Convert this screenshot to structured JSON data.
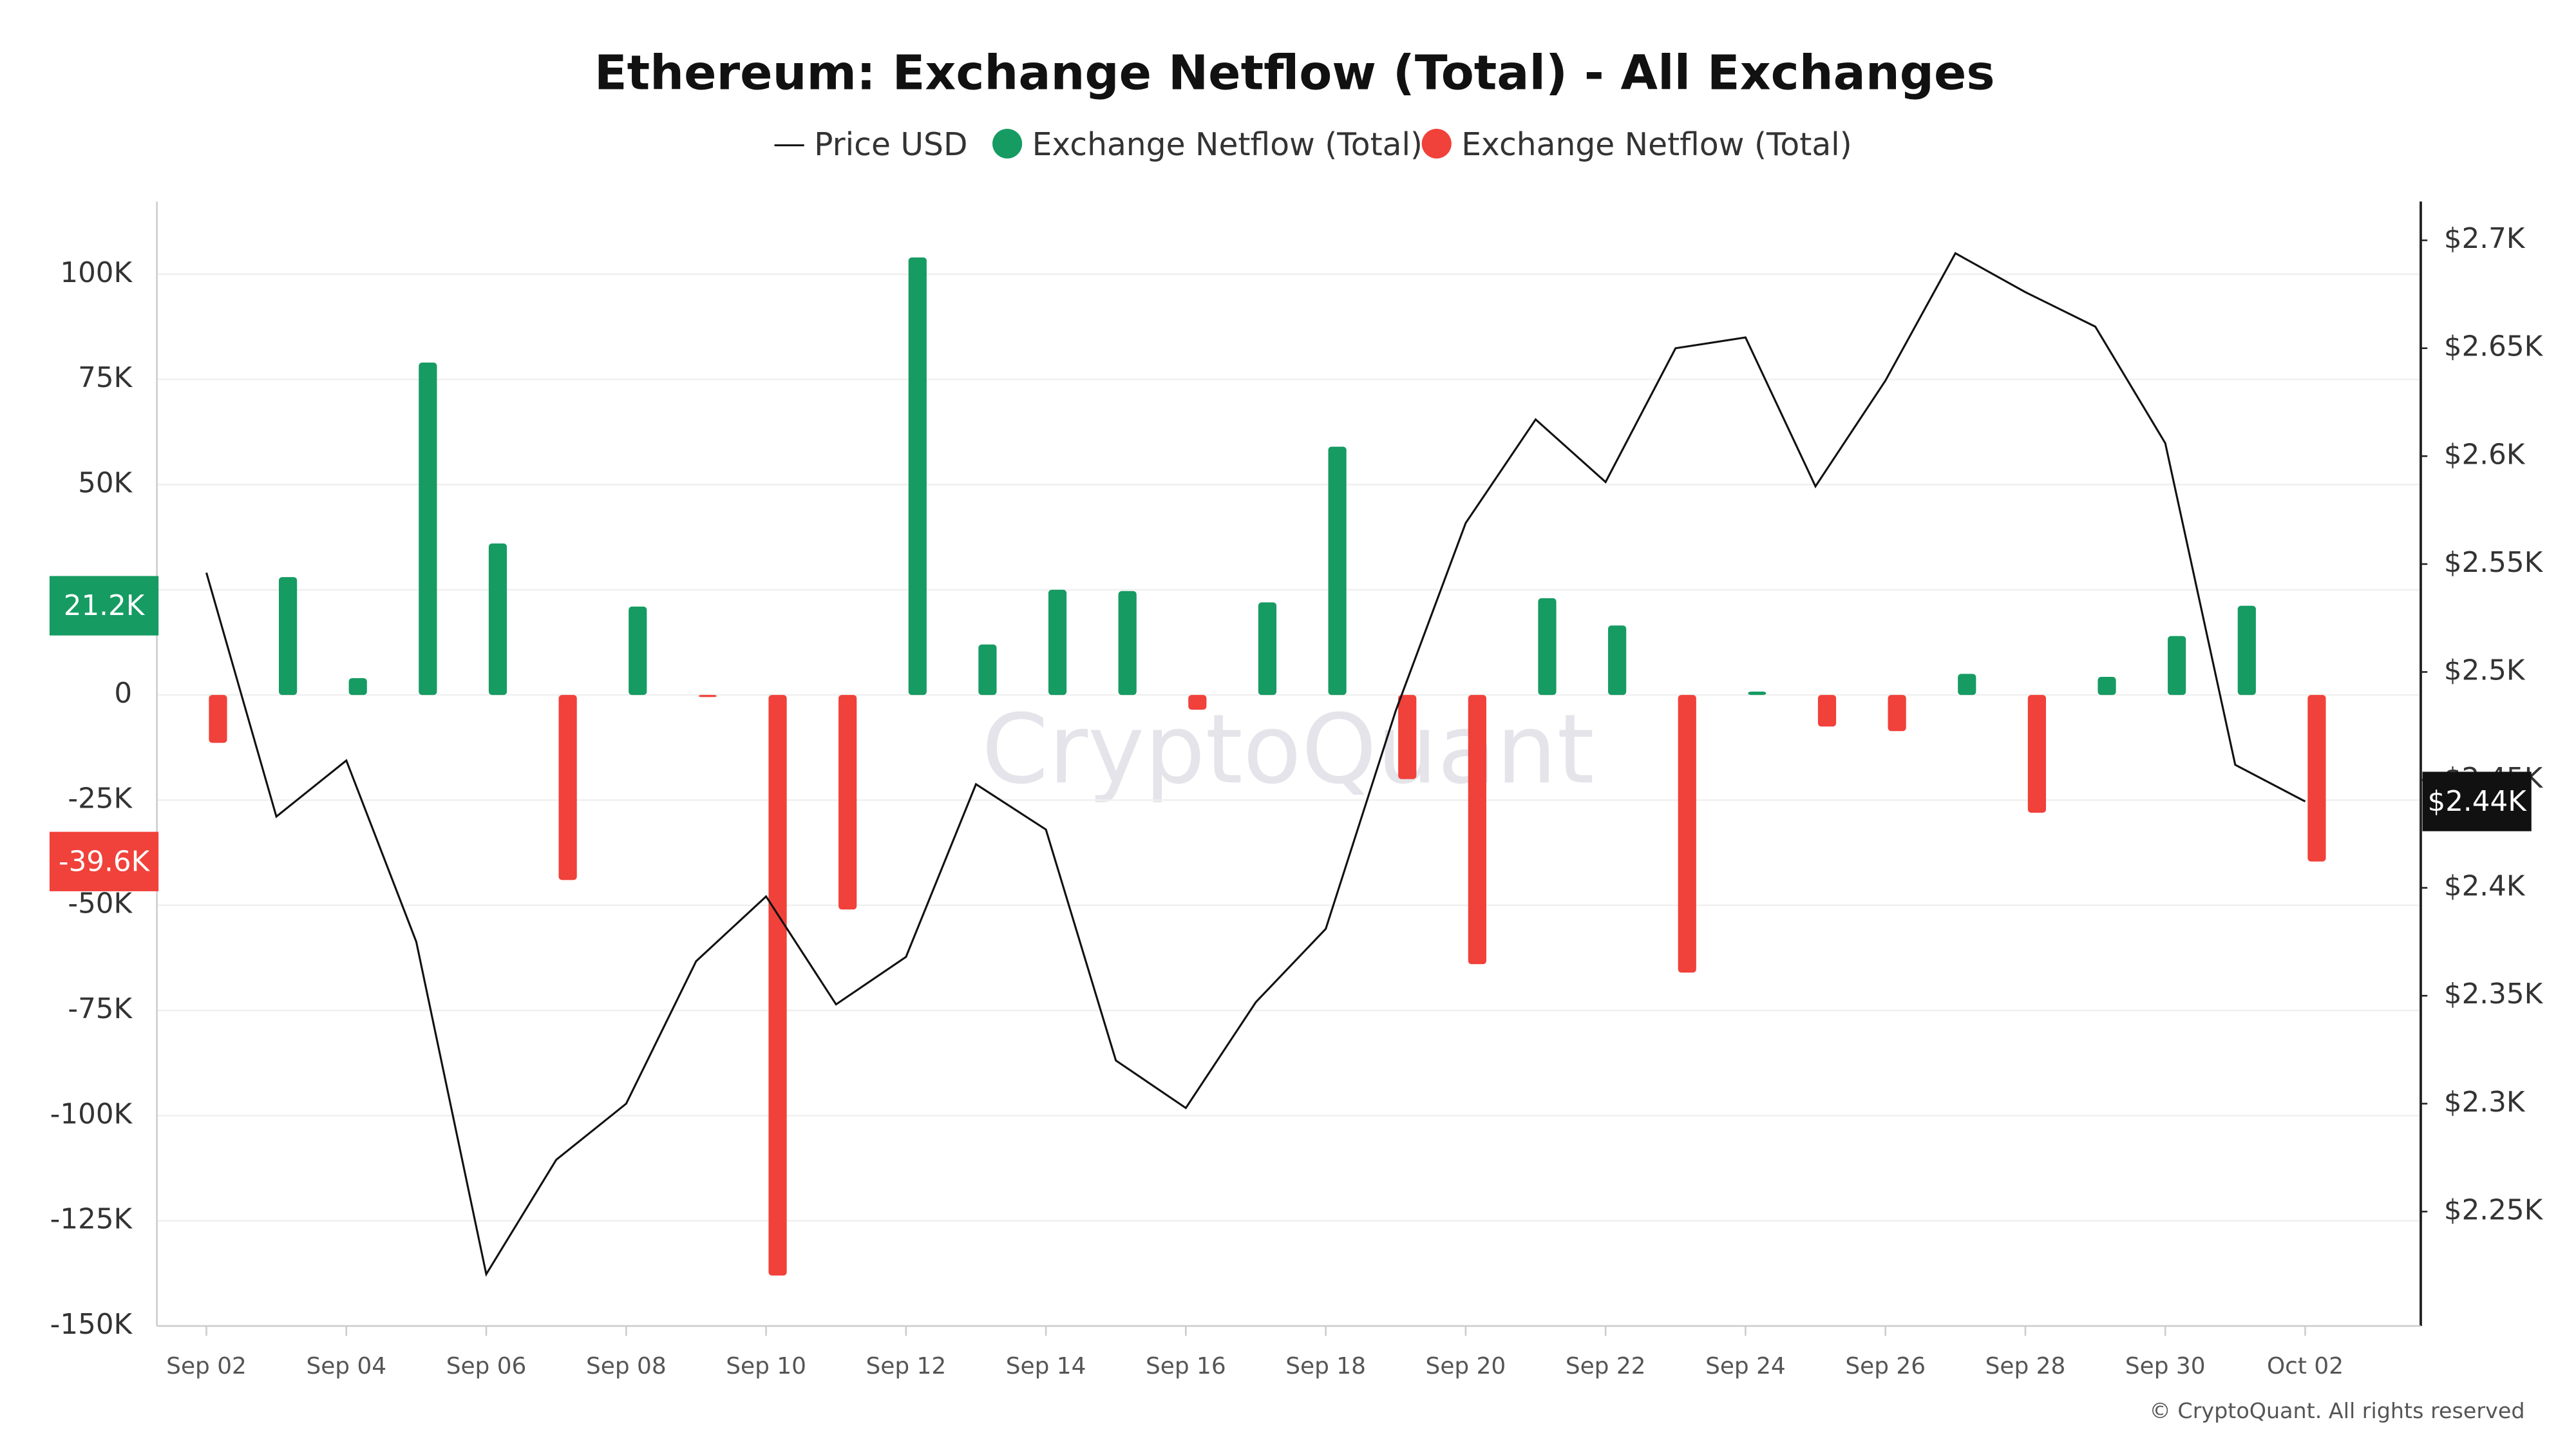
{
  "chart_data": {
    "type": "bar",
    "title": "Ethereum: Exchange Netflow (Total) - All Exchanges",
    "watermark": "CryptoQuant",
    "copyright": "© CryptoQuant. All rights reserved",
    "categories": [
      "Sep 02",
      null,
      "Sep 04",
      null,
      "Sep 06",
      null,
      "Sep 08",
      null,
      "Sep 10",
      null,
      "Sep 12",
      null,
      "Sep 14",
      null,
      "Sep 16",
      null,
      "Sep 18",
      null,
      "Sep 20",
      null,
      "Sep 22",
      null,
      "Sep 24",
      null,
      "Sep 26",
      null,
      "Sep 28",
      null,
      "Sep 30",
      null,
      "Oct 02"
    ],
    "series": [
      {
        "name": "Price USD",
        "type": "line",
        "axis": "y2",
        "color": "#111111",
        "values": [
          2546,
          2433,
          2459,
          2375,
          2221,
          2274,
          2300,
          2366,
          2396,
          2346,
          2368,
          2448,
          2427,
          2320,
          2298,
          2347,
          2381,
          2482,
          2569,
          2617,
          2588,
          2650,
          2655,
          2586,
          2635,
          2694,
          2676,
          2660,
          2606,
          2457,
          2440
        ],
        "value_labels": [
          null,
          null,
          null,
          null,
          null,
          null,
          null,
          null,
          null,
          null,
          null,
          null,
          null,
          null,
          null,
          null,
          null,
          null,
          null,
          null,
          null,
          null,
          null,
          null,
          null,
          null,
          null,
          null,
          null,
          null,
          "$2.44K"
        ]
      },
      {
        "name": "Exchange Netflow (Total)",
        "type": "bar",
        "color": "#169b62",
        "values": [
          null,
          28000,
          4000,
          79000,
          36000,
          null,
          21000,
          null,
          null,
          null,
          104000,
          12000,
          25000,
          24700,
          null,
          22000,
          59000,
          null,
          null,
          23000,
          16500,
          null,
          800,
          null,
          null,
          5000,
          null,
          4300,
          14000,
          21200,
          null
        ],
        "value_labels": [
          null,
          null,
          null,
          null,
          null,
          null,
          null,
          null,
          null,
          null,
          null,
          null,
          null,
          null,
          null,
          null,
          null,
          null,
          null,
          null,
          null,
          null,
          null,
          null,
          null,
          null,
          null,
          null,
          null,
          "21.2K",
          null
        ]
      },
      {
        "name": "Exchange Netflow (Total)",
        "type": "bar",
        "color": "#f0413a",
        "values": [
          -11400,
          null,
          null,
          null,
          null,
          -44000,
          null,
          -500,
          -138000,
          -51000,
          null,
          null,
          null,
          null,
          -3500,
          null,
          null,
          -20000,
          -64000,
          null,
          null,
          -66000,
          null,
          -7500,
          -8600,
          null,
          -28000,
          null,
          null,
          null,
          -39600
        ],
        "value_labels": [
          null,
          null,
          null,
          null,
          null,
          null,
          null,
          null,
          null,
          null,
          null,
          null,
          null,
          null,
          null,
          null,
          null,
          null,
          null,
          null,
          null,
          null,
          null,
          null,
          null,
          null,
          null,
          null,
          null,
          null,
          "-39.6K"
        ]
      }
    ],
    "ylim": [
      -150000,
      117300
    ],
    "yticks": [
      {
        "value": -150000,
        "label": "-150K"
      },
      {
        "value": -125000,
        "label": "-125K"
      },
      {
        "value": -100000,
        "label": "-100K"
      },
      {
        "value": -75000,
        "label": "-75K"
      },
      {
        "value": -50000,
        "label": "-50K"
      },
      {
        "value": -25000,
        "label": "-25K"
      },
      0,
      {
        "value": 25000,
        "label": "25K"
      },
      {
        "value": 50000,
        "label": "50K"
      },
      {
        "value": 75000,
        "label": "75K"
      },
      {
        "value": 100000,
        "label": "100K"
      }
    ],
    "y2lim": [
      2197,
      2718
    ],
    "y2ticks": [
      {
        "value": 2250,
        "label": "$2.25K"
      },
      {
        "value": 2300,
        "label": "$2.3K"
      },
      {
        "value": 2350,
        "label": "$2.35K"
      },
      {
        "value": 2400,
        "label": "$2.4K"
      },
      {
        "value": 2450,
        "label": "$2.45K"
      },
      {
        "value": 2500,
        "label": "$2.5K"
      },
      {
        "value": 2550,
        "label": "$2.55K"
      },
      {
        "value": 2600,
        "label": "$2.6K"
      },
      {
        "value": 2650,
        "label": "$2.65K"
      },
      {
        "value": 2700,
        "label": "$2.7K"
      }
    ],
    "grid": true,
    "legend": "top"
  }
}
